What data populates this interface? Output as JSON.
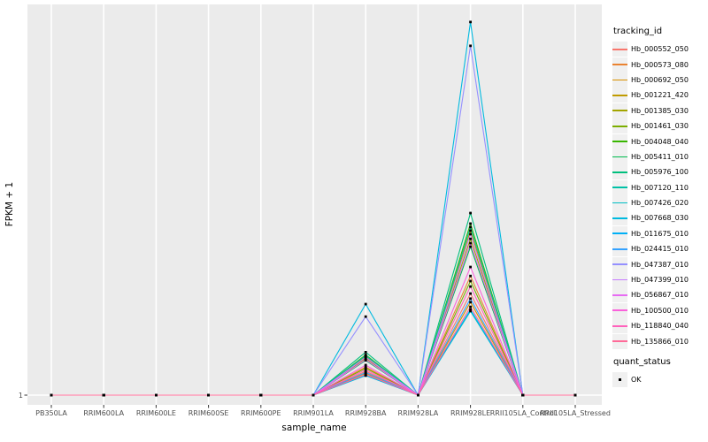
{
  "figure": {
    "background": "#FFFFFF",
    "panel_bg": "#EBEBEB",
    "grid_color": "#FFFFFF",
    "tick_color": "#333333",
    "axis_text_color": "#4D4D4D",
    "point_color": "#000000"
  },
  "chart_data": {
    "type": "line",
    "title": "",
    "xlabel": "sample_name",
    "ylabel": "FPKM + 1",
    "y_ticks": [
      "1"
    ],
    "y_note": "Only the y tick '1' is labeled; series values below are relative peak heights (0 = baseline FPKM+1 of 1, 1 = panel top). All series are flat at 1 except peaks at RRIM928BA and RRIM928LE.",
    "grid": "major-only",
    "categories": [
      "PB350LA",
      "RRIM600LA",
      "RRIM600LE",
      "RRIM600SE",
      "RRIM600PE",
      "RRIM901LA",
      "RRIM928BA",
      "RRIM928LA",
      "RRIM928LE",
      "RRII105LA_Control",
      "RRII105LA_Stressed"
    ],
    "marker": "black-square",
    "series": [
      {
        "name": "Hb_000552_050",
        "color": "#F8766D",
        "values": [
          0,
          0,
          0,
          0,
          0,
          0,
          0.061,
          0,
          0.26,
          0,
          0
        ]
      },
      {
        "name": "Hb_000573_080",
        "color": "#EA8331",
        "values": [
          0,
          0,
          0,
          0,
          0,
          0,
          0.072,
          0,
          0.305,
          0,
          0
        ]
      },
      {
        "name": "Hb_000692_050",
        "color": "#D89000",
        "values": [
          0,
          0,
          0,
          0,
          0,
          0,
          0.056,
          0,
          0.238,
          0,
          0
        ]
      },
      {
        "name": "Hb_001221_420",
        "color": "#C09B00",
        "values": [
          0,
          0,
          0,
          0,
          0,
          0,
          0.099,
          0,
          0.421,
          0,
          0
        ]
      },
      {
        "name": "Hb_001385_030",
        "color": "#A3A500",
        "values": [
          0,
          0,
          0,
          0,
          0,
          0,
          0.094,
          0,
          0.4,
          0,
          0
        ]
      },
      {
        "name": "Hb_001461_030",
        "color": "#7CAE00",
        "values": [
          0,
          0,
          0,
          0,
          0,
          0,
          0.069,
          0,
          0.292,
          0,
          0
        ]
      },
      {
        "name": "Hb_004048_040",
        "color": "#39B600",
        "values": [
          0,
          0,
          0,
          0,
          0,
          0,
          0.103,
          0,
          0.439,
          0,
          0
        ]
      },
      {
        "name": "Hb_005411_010",
        "color": "#00BB4E",
        "values": [
          0,
          0,
          0,
          0,
          0,
          0,
          0.089,
          0,
          0.38,
          0,
          0
        ]
      },
      {
        "name": "Hb_005976_100",
        "color": "#00BF7D",
        "values": [
          0,
          0,
          0,
          0,
          0,
          0,
          0.11,
          0,
          0.466,
          0,
          0
        ]
      },
      {
        "name": "Hb_007120_110",
        "color": "#00C1A7",
        "values": [
          0,
          0,
          0,
          0,
          0,
          0,
          0.101,
          0,
          0.43,
          0,
          0
        ]
      },
      {
        "name": "Hb_007426_020",
        "color": "#00BFC4",
        "values": [
          0,
          0,
          0,
          0,
          0,
          0,
          0.05,
          0,
          0.215,
          0,
          0
        ]
      },
      {
        "name": "Hb_007668_030",
        "color": "#00BAE0",
        "values": [
          0,
          0,
          0,
          0,
          0,
          0,
          0.233,
          0,
          0.955,
          0,
          0
        ]
      },
      {
        "name": "Hb_011675_010",
        "color": "#00B0F6",
        "values": [
          0,
          0,
          0,
          0,
          0,
          0,
          0.051,
          0,
          0.219,
          0,
          0
        ]
      },
      {
        "name": "Hb_024415_010",
        "color": "#35A2FF",
        "values": [
          0,
          0,
          0,
          0,
          0,
          0,
          0.058,
          0,
          0.247,
          0,
          0
        ]
      },
      {
        "name": "Hb_047387_010",
        "color": "#9590FF",
        "values": [
          0,
          0,
          0,
          0,
          0,
          0,
          0.201,
          0,
          0.894,
          0,
          0
        ]
      },
      {
        "name": "Hb_047399_010",
        "color": "#C77CFF",
        "values": [
          0,
          0,
          0,
          0,
          0,
          0,
          0.097,
          0,
          0.412,
          0,
          0
        ]
      },
      {
        "name": "Hb_056867_010",
        "color": "#E76BF3",
        "values": [
          0,
          0,
          0,
          0,
          0,
          0,
          0.091,
          0,
          0.389,
          0,
          0
        ]
      },
      {
        "name": "Hb_100500_010",
        "color": "#FA62DB",
        "values": [
          0,
          0,
          0,
          0,
          0,
          0,
          0.077,
          0,
          0.328,
          0,
          0
        ]
      },
      {
        "name": "Hb_118840_040",
        "color": "#FF62BC",
        "values": [
          0,
          0,
          0,
          0,
          0,
          0,
          0.065,
          0,
          0.278,
          0,
          0
        ]
      },
      {
        "name": "Hb_135866_010",
        "color": "#FF6A98",
        "values": [
          0,
          0,
          0,
          0,
          0,
          0,
          0.053,
          0,
          0.226,
          0,
          0
        ]
      }
    ],
    "legend": {
      "title": "tracking_id",
      "position": "right"
    },
    "quant_legend": {
      "title": "quant_status",
      "items": [
        {
          "label": "OK",
          "marker": "black-square"
        }
      ]
    }
  }
}
